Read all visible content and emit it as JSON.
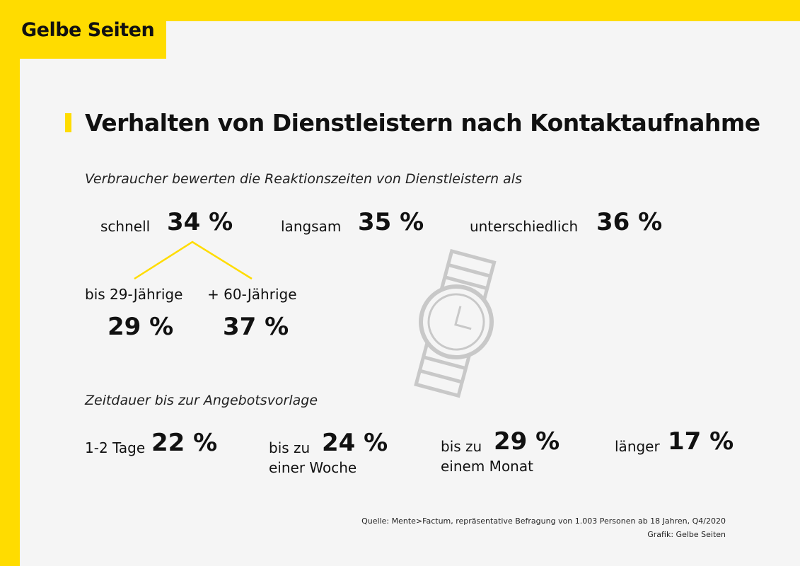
{
  "logo": "Gelbe Seiten",
  "title": "Verhalten von Dienstleistern nach Kontaktaufnahme",
  "section1": {
    "subtitle": "Verbraucher bewerten die Reaktionszeiten von Dienstleistern als",
    "items": [
      {
        "label": "schnell",
        "value": "34 %"
      },
      {
        "label": "langsam",
        "value": "35 %"
      },
      {
        "label": "unterschiedlich",
        "value": "36 %"
      }
    ],
    "breakdown": [
      {
        "label": "bis 29-Jährige",
        "value": "29 %"
      },
      {
        "label": "+ 60-Jährige",
        "value": "37 %"
      }
    ]
  },
  "section2": {
    "subtitle": "Zeitdauer bis zur Angebotsvorlage",
    "items": [
      {
        "label": "1-2 Tage",
        "label2": "",
        "value": "22 %"
      },
      {
        "label": "bis zu",
        "label2": "einer Woche",
        "value": "24 %"
      },
      {
        "label": "bis zu",
        "label2": "einem Monat",
        "value": "29 %"
      },
      {
        "label": "länger",
        "label2": "",
        "value": "17 %"
      }
    ]
  },
  "footer": {
    "source": "Quelle: Mente>Factum, repräsentative Befragung von 1.003 Personen ab 18 Jahren, Q4/2020",
    "credit": "Grafik: Gelbe Seiten"
  },
  "colors": {
    "brand_yellow": "#ffdc00",
    "background": "#f5f5f5",
    "icon_gray": "#c8c8c8"
  },
  "icons": [
    "watch-icon"
  ]
}
